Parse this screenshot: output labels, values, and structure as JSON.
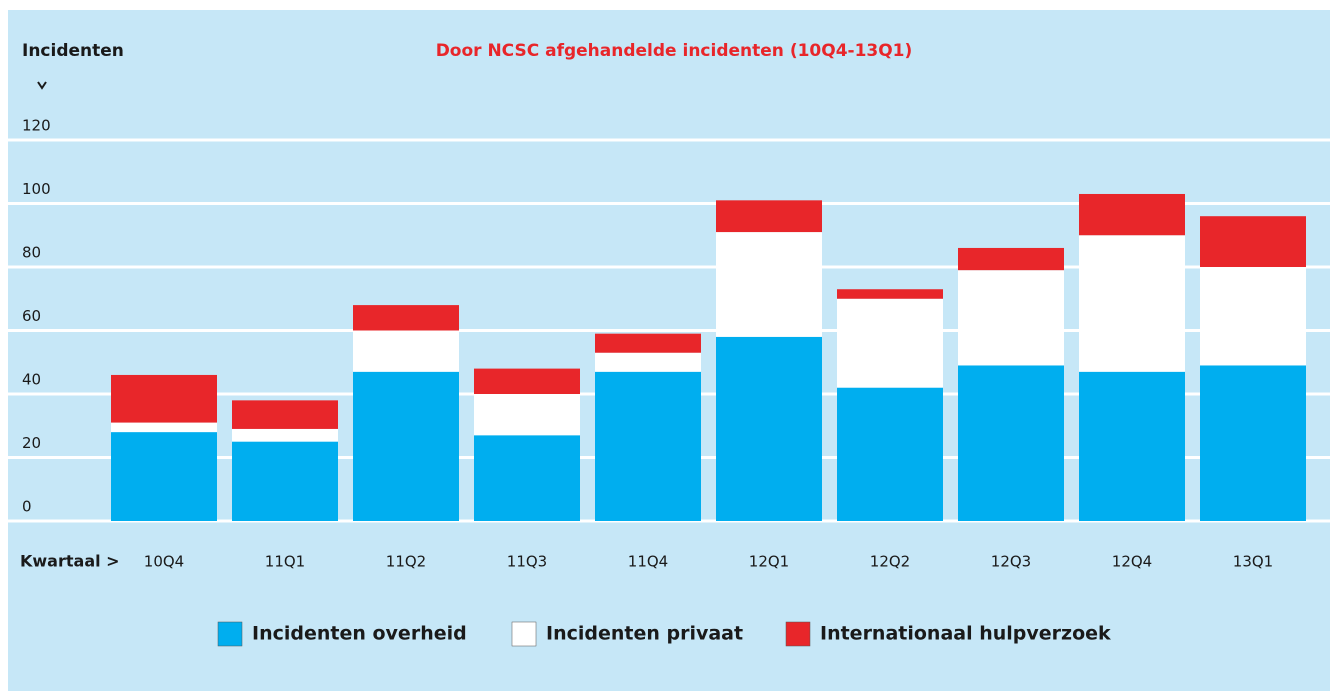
{
  "chart_data": {
    "type": "stacked_bar",
    "title": "Door NCSC afgehandelde incidenten (10Q4-13Q1)",
    "y_label": "Incidenten",
    "x_label": "Kwartaal >",
    "categories": [
      "10Q4",
      "11Q1",
      "11Q2",
      "11Q3",
      "11Q4",
      "12Q1",
      "12Q2",
      "12Q3",
      "12Q4",
      "13Q1"
    ],
    "series": [
      {
        "name": "Incidenten overheid",
        "color": "#00aeef",
        "values": [
          28,
          25,
          47,
          27,
          47,
          58,
          42,
          49,
          47,
          49
        ]
      },
      {
        "name": "Incidenten privaat",
        "color": "#ffffff",
        "values": [
          3,
          4,
          13,
          13,
          6,
          33,
          28,
          30,
          43,
          31
        ]
      },
      {
        "name": "Internationaal hulpverzoek",
        "color": "#e8262a",
        "values": [
          15,
          9,
          8,
          8,
          6,
          10,
          3,
          7,
          13,
          16
        ]
      }
    ],
    "ylim": [
      0,
      120
    ],
    "yticks": [
      0,
      20,
      40,
      60,
      80,
      100,
      120
    ],
    "grid": true
  }
}
